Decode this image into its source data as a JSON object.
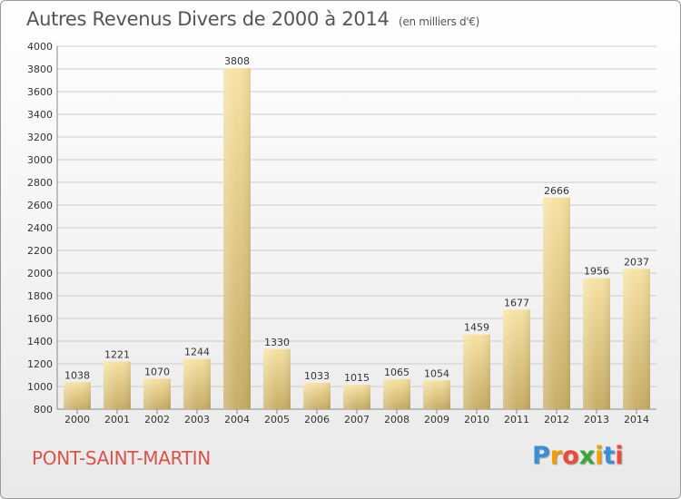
{
  "header": {
    "title": "Autres Revenus Divers de 2000 à 2014",
    "subtitle": "(en milliers d'€)"
  },
  "footer": {
    "place": "PONT-SAINT-MARTIN",
    "logo_letters": [
      "P",
      "r",
      "o",
      "x",
      "i",
      "t",
      "i"
    ],
    "logo_colors": [
      "#3a8fd6",
      "#f0a000",
      "#e94b3c",
      "#3aa63a",
      "#f0a000",
      "#3a8fd6",
      "#e94b3c"
    ]
  },
  "colors": {
    "bar_light": "#f6e2a2",
    "bar_dark": "#c8ad66",
    "grid": "#cccccc",
    "axis_text": "#333333",
    "place_text": "#d9534a"
  },
  "chart_data": {
    "type": "bar",
    "title": "Autres Revenus Divers de 2000 à 2014",
    "subtitle": "(en milliers d'€)",
    "xlabel": "",
    "ylabel": "",
    "categories": [
      "2000",
      "2001",
      "2002",
      "2003",
      "2004",
      "2005",
      "2006",
      "2007",
      "2008",
      "2009",
      "2010",
      "2011",
      "2012",
      "2013",
      "2014"
    ],
    "values": [
      1038,
      1221,
      1070,
      1244,
      3808,
      1330,
      1033,
      1015,
      1065,
      1054,
      1459,
      1677,
      2666,
      1956,
      2037
    ],
    "ylim": [
      800,
      4000
    ],
    "yticks": [
      800,
      1000,
      1200,
      1400,
      1600,
      1800,
      2000,
      2200,
      2400,
      2600,
      2800,
      3000,
      3200,
      3400,
      3600,
      3800,
      4000
    ],
    "grid": true,
    "data_labels": true
  }
}
